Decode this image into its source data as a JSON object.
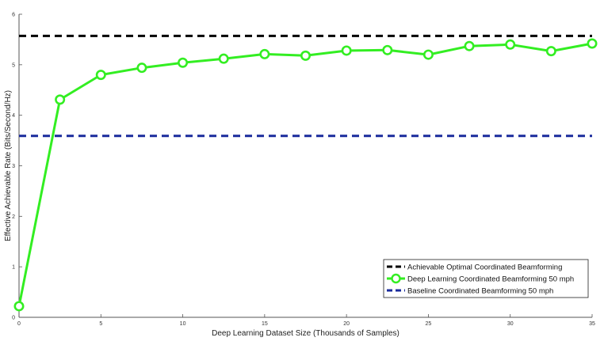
{
  "chart_data": {
    "type": "line",
    "xlabel": "Deep Learning Dataset Size (Thousands of Samples)",
    "ylabel": "Effective Achievable Rate (Bits/Second/Hz)",
    "xlim": [
      0,
      35
    ],
    "ylim": [
      0,
      6
    ],
    "xticks": [
      0,
      5,
      10,
      15,
      20,
      25,
      30,
      35
    ],
    "yticks": [
      0,
      1,
      2,
      3,
      4,
      5,
      6
    ],
    "grid": false,
    "legend_position": "bottom-right",
    "series": [
      {
        "name": "Achievable Optimal Coordinated Beamforming",
        "style": "dashed",
        "color": "#000000",
        "marker": "none",
        "x": [
          0,
          35
        ],
        "y": [
          5.57,
          5.57
        ]
      },
      {
        "name": "Deep Learning Coordinated Beamforming 50 mph",
        "style": "solid",
        "color": "#33ee22",
        "marker": "circle",
        "x": [
          0,
          2.5,
          5,
          7.5,
          10,
          12.5,
          15,
          17.5,
          20,
          22.5,
          25,
          27.5,
          30,
          32.5,
          35
        ],
        "y": [
          0.22,
          4.31,
          4.8,
          4.94,
          5.04,
          5.12,
          5.21,
          5.18,
          5.28,
          5.29,
          5.2,
          5.37,
          5.4,
          5.27,
          5.42
        ]
      },
      {
        "name": "Baseline Coordinated Beamforming 50 mph",
        "style": "dashed",
        "color": "#1a2b9c",
        "marker": "none",
        "x": [
          0,
          35
        ],
        "y": [
          3.59,
          3.59
        ]
      }
    ]
  }
}
